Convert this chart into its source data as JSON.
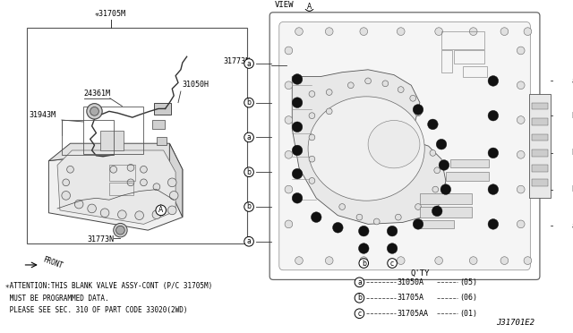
{
  "bg_color": "#ffffff",
  "diagram_id": "J31701E2",
  "attention_text": [
    "✳ATTENTION:THIS BLANK VALVE ASSY-CONT (P/C 31705M)",
    " MUST BE PROGRAMMED DATA.",
    " PLEASE SEE SEC. 310 OF PART CODE 33020(2WD)"
  ],
  "legend": [
    {
      "symbol": "a",
      "part": "31050A",
      "qty": "(05)"
    },
    {
      "symbol": "b",
      "part": "31705A",
      "qty": "(06)"
    },
    {
      "symbol": "c",
      "part": "31705AA",
      "qty": "(01)"
    }
  ]
}
